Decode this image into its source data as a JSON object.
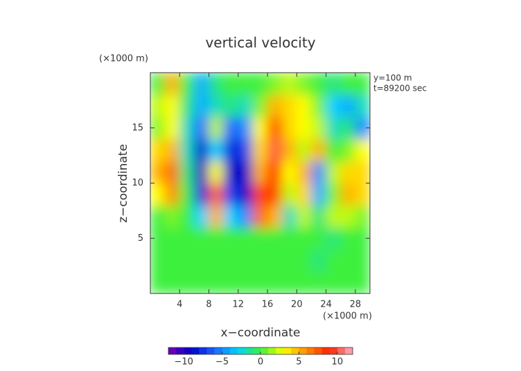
{
  "chart_data": {
    "type": "contour",
    "title": "vertical velocity",
    "y_unit": "(×1000 m)",
    "x_unit": "(×1000 m)",
    "annotations": [
      "y=100 m",
      "t=89200 sec"
    ],
    "xlabel": "x−coordinate",
    "ylabel": "z−coordinate",
    "xlim": [
      0,
      30
    ],
    "ylim": [
      0,
      20
    ],
    "xticks": [
      4,
      8,
      12,
      16,
      20,
      24,
      28
    ],
    "yticks": [
      5,
      10,
      15
    ],
    "x": [
      1,
      3,
      5,
      7,
      9,
      11,
      13,
      15,
      17,
      19,
      21,
      23,
      25,
      27,
      29
    ],
    "z": [
      1,
      3,
      5,
      7,
      9,
      11,
      13,
      15,
      17,
      19
    ],
    "values": [
      [
        0,
        0,
        0,
        0,
        0,
        0,
        0,
        0,
        0,
        0,
        0,
        0,
        0,
        0,
        0
      ],
      [
        0,
        0,
        0,
        0,
        0,
        0,
        0,
        0,
        0,
        0,
        0,
        -1,
        0,
        0,
        0
      ],
      [
        0,
        0,
        0,
        0,
        0,
        0,
        0,
        0,
        0,
        0,
        0,
        0,
        -1,
        0,
        0
      ],
      [
        0,
        1,
        0,
        -3,
        5,
        -3,
        -5,
        7,
        5,
        -2,
        2,
        -1,
        2,
        2,
        1
      ],
      [
        3,
        6,
        0,
        -8,
        7,
        -7,
        -9,
        8,
        8,
        2,
        4,
        -4,
        1,
        5,
        4
      ],
      [
        5,
        7,
        -1,
        -10,
        3,
        -9,
        -9,
        5,
        9,
        3,
        5,
        -5,
        2,
        4,
        4
      ],
      [
        4,
        5,
        -2,
        -9,
        -3,
        -8,
        -7,
        4,
        10,
        5,
        2,
        5,
        0,
        1,
        3
      ],
      [
        1,
        3,
        -2,
        -6,
        2,
        -6,
        -5,
        3,
        8,
        4,
        3,
        2,
        -2,
        -1,
        -5
      ],
      [
        2,
        3,
        -1,
        -4,
        -2,
        -1,
        -2,
        1,
        5,
        4,
        3,
        1,
        -3,
        -4,
        -2
      ],
      [
        0,
        5,
        0,
        -4,
        -1,
        0,
        0,
        0,
        1,
        2,
        1,
        0,
        -1,
        0,
        0
      ]
    ],
    "clim": [
      -12,
      12
    ],
    "cticks": [
      {
        "value": -10,
        "label": "−10"
      },
      {
        "value": -5,
        "label": "−5"
      },
      0,
      5,
      10
    ],
    "colormap": [
      "#7800b4",
      "#0000c8",
      "#1e64ff",
      "#00d2ff",
      "#3cf03c",
      "#ffff00",
      "#ff8c00",
      "#ff1e00",
      "#ffb4c8"
    ]
  }
}
